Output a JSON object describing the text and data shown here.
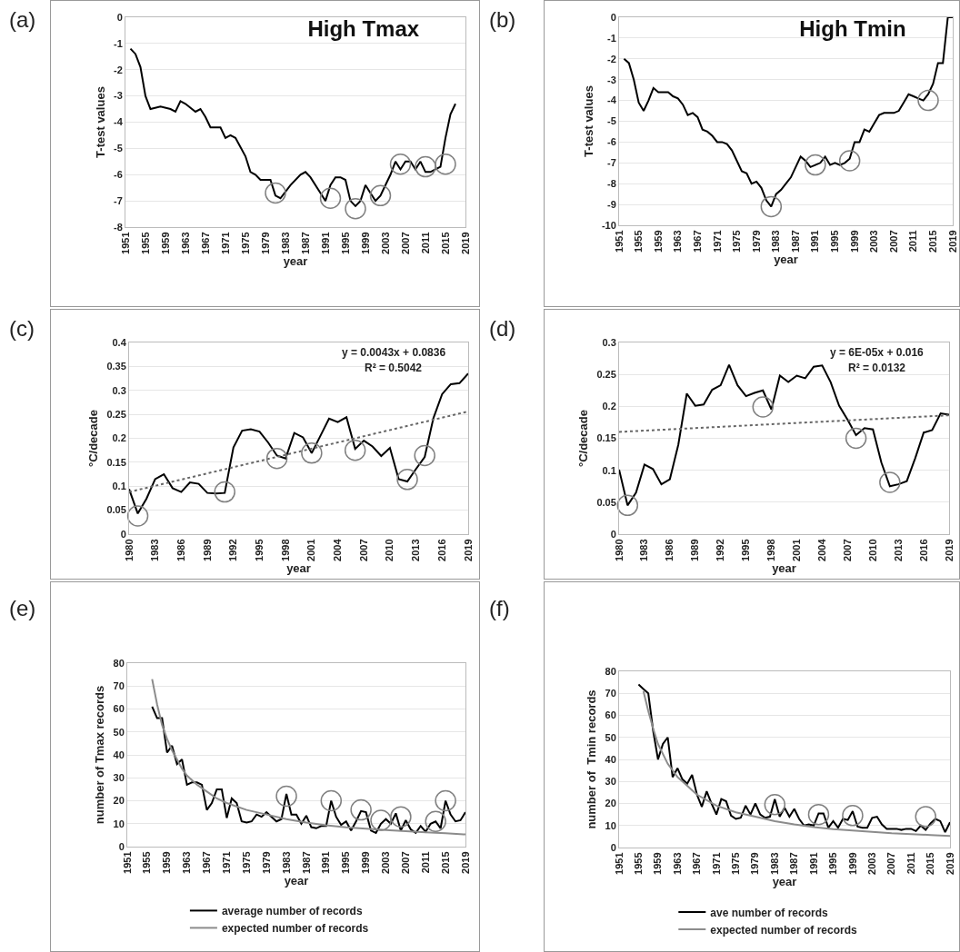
{
  "chart_data": [
    {
      "type": "line",
      "title": "High Tmax",
      "xlabel": "year",
      "ylabel": "T-test values",
      "annotations": [
        "(a)"
      ],
      "xlim": [
        1951,
        2019
      ],
      "xticks": [
        1951,
        1955,
        1959,
        1963,
        1967,
        1971,
        1975,
        1979,
        1983,
        1987,
        1991,
        1995,
        1999,
        2003,
        2007,
        2011,
        2015,
        2019
      ],
      "ylim": [
        -8,
        0
      ],
      "yticks": [
        -8,
        -7,
        -6,
        -5,
        -4,
        -3,
        -2,
        -1,
        0
      ],
      "grid": "y",
      "legend": false,
      "series": [
        {
          "color": "#000000",
          "x": [
            1952,
            1953,
            1954,
            1955,
            1956,
            1958,
            1960,
            1961,
            1962,
            1963,
            1965,
            1966,
            1967,
            1968,
            1970,
            1971,
            1972,
            1973,
            1975,
            1976,
            1977,
            1978,
            1979,
            1980,
            1981,
            1982,
            1984,
            1986,
            1987,
            1988,
            1990,
            1991,
            1992,
            1993,
            1994,
            1995,
            1996,
            1997,
            1998,
            1999,
            2000,
            2001,
            2002,
            2003,
            2004,
            2005,
            2006,
            2007,
            2008,
            2009,
            2010,
            2011,
            2012,
            2013,
            2014,
            2015,
            2016,
            2017
          ],
          "values": [
            -1.2,
            -1.4,
            -1.9,
            -3.0,
            -3.5,
            -3.4,
            -3.5,
            -3.6,
            -3.2,
            -3.3,
            -3.6,
            -3.5,
            -3.8,
            -4.2,
            -4.2,
            -4.6,
            -4.5,
            -4.6,
            -5.3,
            -5.9,
            -6.0,
            -6.2,
            -6.2,
            -6.2,
            -6.8,
            -6.9,
            -6.4,
            -6.0,
            -5.9,
            -6.1,
            -6.7,
            -7.0,
            -6.4,
            -6.1,
            -6.1,
            -6.2,
            -7.0,
            -7.2,
            -7.0,
            -6.4,
            -6.7,
            -7.0,
            -6.8,
            -6.4,
            -6.0,
            -5.5,
            -5.8,
            -5.5,
            -5.5,
            -5.8,
            -5.5,
            -5.9,
            -5.9,
            -5.8,
            -5.7,
            -4.6,
            -3.7,
            -3.3
          ]
        },
        {
          "type": "scatter",
          "marker": "circle",
          "color": "#808080",
          "x": [
            1981,
            1992,
            1997,
            2002,
            2006,
            2011,
            2015
          ],
          "values": [
            -6.7,
            -6.9,
            -7.3,
            -6.8,
            -5.6,
            -5.7,
            -5.6
          ]
        }
      ]
    },
    {
      "type": "line",
      "title": "High Tmin",
      "xlabel": "year",
      "ylabel": "T-test values",
      "annotations": [
        "(b)"
      ],
      "xlim": [
        1951,
        2019
      ],
      "xticks": [
        1951,
        1955,
        1959,
        1963,
        1967,
        1971,
        1975,
        1979,
        1983,
        1987,
        1991,
        1995,
        1999,
        2003,
        2007,
        2011,
        2015,
        2019
      ],
      "ylim": [
        -10,
        0
      ],
      "yticks": [
        -10,
        -9,
        -8,
        -7,
        -6,
        -5,
        -4,
        -3,
        -2,
        -1,
        0
      ],
      "grid": "y",
      "legend": false,
      "series": [
        {
          "color": "#000000",
          "x": [
            1952,
            1953,
            1954,
            1955,
            1956,
            1957,
            1958,
            1959,
            1960,
            1961,
            1962,
            1963,
            1964,
            1965,
            1966,
            1967,
            1968,
            1969,
            1970,
            1971,
            1972,
            1973,
            1974,
            1975,
            1976,
            1977,
            1978,
            1979,
            1980,
            1981,
            1982,
            1983,
            1984,
            1985,
            1986,
            1987,
            1988,
            1989,
            1990,
            1991,
            1992,
            1993,
            1994,
            1995,
            1996,
            1997,
            1998,
            1999,
            2000,
            2001,
            2002,
            2003,
            2004,
            2005,
            2006,
            2007,
            2008,
            2009,
            2010,
            2011,
            2012,
            2013,
            2014,
            2015,
            2016,
            2017,
            2018,
            2019
          ],
          "values": [
            -2.0,
            -2.2,
            -3.0,
            -4.1,
            -4.5,
            -4.0,
            -3.4,
            -3.6,
            -3.6,
            -3.6,
            -3.8,
            -3.9,
            -4.2,
            -4.7,
            -4.6,
            -4.8,
            -5.4,
            -5.5,
            -5.7,
            -6.0,
            -6.0,
            -6.1,
            -6.4,
            -6.9,
            -7.4,
            -7.5,
            -8.0,
            -7.9,
            -8.2,
            -8.8,
            -9.1,
            -8.5,
            -8.3,
            -8.0,
            -7.7,
            -7.2,
            -6.7,
            -6.9,
            -7.2,
            -7.1,
            -7.0,
            -6.7,
            -7.1,
            -7.0,
            -7.1,
            -7.0,
            -6.8,
            -6.0,
            -6.0,
            -5.4,
            -5.5,
            -5.1,
            -4.7,
            -4.6,
            -4.6,
            -4.6,
            -4.5,
            -4.1,
            -3.7,
            -3.8,
            -3.9,
            -4.0,
            -3.7,
            -3.2,
            -2.2,
            -2.2,
            0,
            0
          ]
        },
        {
          "type": "scatter",
          "marker": "circle",
          "color": "#808080",
          "x": [
            1982,
            1991,
            1998,
            2014
          ],
          "values": [
            -9.1,
            -7.1,
            -6.9,
            -4.0
          ]
        }
      ]
    },
    {
      "type": "line",
      "xlabel": "year",
      "ylabel": "°C/decade",
      "annotations": [
        "(c)",
        "y = 0.0043x + 0.0836",
        "R² = 0.5042"
      ],
      "xlim": [
        1980,
        2019
      ],
      "xticks": [
        1980,
        1983,
        1986,
        1989,
        1992,
        1995,
        1998,
        2001,
        2004,
        2007,
        2010,
        2013,
        2016,
        2019
      ],
      "ylim": [
        0,
        0.4
      ],
      "yticks": [
        0,
        0.05,
        0.1,
        0.15,
        0.2,
        0.25,
        0.3,
        0.35,
        0.4
      ],
      "grid": "y",
      "legend": false,
      "series": [
        {
          "color": "#000000",
          "x": [
            1980,
            1981,
            1982,
            1983,
            1984,
            1985,
            1986,
            1987,
            1988,
            1989,
            1990,
            1991,
            1992,
            1993,
            1994,
            1995,
            1996,
            1997,
            1998,
            1999,
            2000,
            2001,
            2002,
            2003,
            2004,
            2005,
            2006,
            2007,
            2008,
            2009,
            2010,
            2011,
            2012,
            2013,
            2014,
            2015,
            2016,
            2017,
            2018,
            2019
          ],
          "values": [
            0.094,
            0.043,
            0.074,
            0.115,
            0.125,
            0.096,
            0.088,
            0.108,
            0.105,
            0.086,
            0.085,
            0.086,
            0.181,
            0.216,
            0.219,
            0.214,
            0.191,
            0.164,
            0.158,
            0.211,
            0.202,
            0.169,
            0.205,
            0.241,
            0.234,
            0.244,
            0.178,
            0.195,
            0.183,
            0.163,
            0.18,
            0.115,
            0.11,
            0.136,
            0.161,
            0.242,
            0.292,
            0.313,
            0.315,
            0.335
          ]
        },
        {
          "type": "line",
          "line_style": "dotted",
          "color": "#666666",
          "x": [
            1980,
            2019
          ],
          "values": [
            0.088,
            0.256
          ]
        },
        {
          "type": "scatter",
          "marker": "circle",
          "color": "#808080",
          "x": [
            1981,
            1991,
            1997,
            2001,
            2006,
            2012,
            2014
          ],
          "values": [
            0.038,
            0.088,
            0.158,
            0.169,
            0.175,
            0.114,
            0.164
          ]
        }
      ]
    },
    {
      "type": "line",
      "xlabel": "year",
      "ylabel": "°C/decade",
      "annotations": [
        "(d)",
        "y = 6E-05x + 0.016",
        "R² = 0.0132"
      ],
      "xlim": [
        1980,
        2019
      ],
      "xticks": [
        1980,
        1983,
        1986,
        1989,
        1992,
        1995,
        1998,
        2001,
        2004,
        2007,
        2010,
        2013,
        2016,
        2019
      ],
      "ylim": [
        0,
        0.3
      ],
      "yticks": [
        0,
        0.05,
        0.1,
        0.15,
        0.2,
        0.25,
        0.3
      ],
      "grid": "y",
      "legend": false,
      "series": [
        {
          "color": "#000000",
          "x": [
            1980,
            1981,
            1982,
            1983,
            1984,
            1985,
            1986,
            1987,
            1988,
            1989,
            1990,
            1991,
            1992,
            1993,
            1994,
            1995,
            1996,
            1997,
            1998,
            1999,
            2000,
            2001,
            2002,
            2003,
            2004,
            2005,
            2006,
            2007,
            2008,
            2009,
            2010,
            2011,
            2012,
            2013,
            2014,
            2015,
            2016,
            2017,
            2018,
            2019
          ],
          "values": [
            0.101,
            0.045,
            0.065,
            0.109,
            0.102,
            0.078,
            0.086,
            0.14,
            0.22,
            0.201,
            0.203,
            0.226,
            0.233,
            0.265,
            0.233,
            0.216,
            0.221,
            0.225,
            0.195,
            0.248,
            0.238,
            0.248,
            0.244,
            0.262,
            0.264,
            0.238,
            0.201,
            0.179,
            0.155,
            0.166,
            0.164,
            0.112,
            0.075,
            0.078,
            0.083,
            0.119,
            0.159,
            0.163,
            0.189,
            0.187
          ]
        },
        {
          "type": "line",
          "line_style": "dotted",
          "color": "#666666",
          "x": [
            1980,
            2019
          ],
          "values": [
            0.16,
            0.186
          ]
        },
        {
          "type": "scatter",
          "marker": "circle",
          "color": "#808080",
          "x": [
            1981,
            1997,
            2008,
            2012
          ],
          "values": [
            0.045,
            0.199,
            0.15,
            0.081
          ]
        }
      ]
    },
    {
      "type": "line",
      "xlabel": "year",
      "ylabel": "number of Tmax records",
      "annotations": [
        "(e)"
      ],
      "xlim": [
        1951,
        2019
      ],
      "xticks": [
        1951,
        1955,
        1959,
        1963,
        1967,
        1971,
        1975,
        1979,
        1983,
        1987,
        1991,
        1995,
        1999,
        2003,
        2007,
        2011,
        2015,
        2019
      ],
      "ylim": [
        0,
        80
      ],
      "yticks": [
        0,
        10,
        20,
        30,
        40,
        50,
        60,
        70,
        80
      ],
      "grid": "y",
      "legend": "bottom",
      "series": [
        {
          "name": "average number of records",
          "color": "#000000",
          "x": [
            1956,
            1957,
            1958,
            1959,
            1960,
            1961,
            1962,
            1963,
            1964,
            1965,
            1966,
            1967,
            1968,
            1969,
            1970,
            1971,
            1972,
            1973,
            1974,
            1975,
            1976,
            1977,
            1978,
            1979,
            1980,
            1981,
            1982,
            1983,
            1984,
            1985,
            1986,
            1987,
            1988,
            1989,
            1990,
            1991,
            1992,
            1993,
            1994,
            1995,
            1996,
            1997,
            1998,
            1999,
            2000,
            2001,
            2002,
            2003,
            2004,
            2005,
            2006,
            2007,
            2008,
            2009,
            2010,
            2011,
            2012,
            2013,
            2014,
            2015,
            2016,
            2017,
            2018,
            2019
          ],
          "values": [
            61,
            56,
            56,
            41,
            44,
            36,
            38,
            27,
            28,
            28,
            27,
            16,
            19,
            25,
            25,
            12.5,
            21,
            19,
            11,
            10.5,
            11,
            14,
            13,
            15,
            13,
            11,
            12,
            23,
            14,
            14,
            10,
            13.5,
            8.5,
            8,
            9,
            9,
            20,
            13,
            9.5,
            11,
            7,
            11,
            15.5,
            15,
            7,
            6,
            10,
            12,
            10,
            14.5,
            7,
            11.5,
            7.5,
            6,
            9,
            6.5,
            10,
            11,
            8,
            20,
            14,
            11,
            11.5,
            15
          ]
        },
        {
          "name": "expected number of records",
          "color": "#8c8c8c",
          "x": [
            1956,
            1957,
            1958,
            1959,
            1960,
            1961,
            1962,
            1963,
            1965,
            1967,
            1969,
            1971,
            1975,
            1979,
            1983,
            1987,
            1991,
            1995,
            1999,
            2003,
            2007,
            2011,
            2015,
            2019
          ],
          "values": [
            73,
            62,
            53,
            47,
            42,
            38,
            34,
            31,
            27,
            24,
            21,
            19,
            16,
            14,
            12,
            10.5,
            9.3,
            8.4,
            7.8,
            7.2,
            6.7,
            6.2,
            5.8,
            5.3
          ]
        },
        {
          "type": "scatter",
          "marker": "circle",
          "color": "#808080",
          "x": [
            1983,
            1992,
            1998,
            2002,
            2006,
            2013,
            2015
          ],
          "values": [
            22,
            20,
            16,
            11.5,
            13,
            11,
            20
          ]
        }
      ]
    },
    {
      "type": "line",
      "xlabel": "year",
      "ylabel": "number of  Tmin records",
      "annotations": [
        "(f)"
      ],
      "xlim": [
        1951,
        2019
      ],
      "xticks": [
        1951,
        1955,
        1959,
        1963,
        1967,
        1971,
        1975,
        1979,
        1983,
        1987,
        1991,
        1995,
        1999,
        2003,
        2007,
        2011,
        2015,
        2019
      ],
      "ylim": [
        0,
        80
      ],
      "yticks": [
        0,
        10,
        20,
        30,
        40,
        50,
        60,
        70,
        80
      ],
      "grid": "y",
      "legend": "bottom",
      "series": [
        {
          "name": "ave number of records",
          "color": "#000000",
          "x": [
            1955,
            1956,
            1957,
            1958,
            1959,
            1960,
            1961,
            1962,
            1963,
            1964,
            1965,
            1966,
            1967,
            1968,
            1969,
            1970,
            1971,
            1972,
            1973,
            1974,
            1975,
            1976,
            1977,
            1978,
            1979,
            1980,
            1981,
            1982,
            1983,
            1984,
            1985,
            1986,
            1987,
            1988,
            1989,
            1990,
            1991,
            1992,
            1993,
            1994,
            1995,
            1996,
            1997,
            1998,
            1999,
            2000,
            2001,
            2002,
            2003,
            2004,
            2005,
            2006,
            2007,
            2008,
            2009,
            2010,
            2011,
            2012,
            2013,
            2014,
            2015,
            2016,
            2017,
            2018,
            2019
          ],
          "values": [
            74,
            72,
            70,
            53,
            40,
            47,
            50,
            32,
            36,
            31,
            29,
            33,
            24,
            18.5,
            25.5,
            20,
            15,
            22,
            21,
            14.5,
            13,
            13.5,
            19,
            15,
            20,
            15,
            13.5,
            14,
            22,
            14,
            18,
            14,
            17.5,
            13,
            10,
            10.5,
            10,
            15.5,
            15.5,
            9,
            12,
            9,
            13,
            12.5,
            16.5,
            9.5,
            9,
            9,
            13.5,
            14,
            10.5,
            8.5,
            8.5,
            8.5,
            8,
            8.5,
            8.5,
            7.5,
            10,
            8,
            11,
            13,
            12,
            7,
            11.5
          ]
        },
        {
          "name": "expected number of records",
          "color": "#8c8c8c",
          "x": [
            1956,
            1957,
            1958,
            1959,
            1961,
            1963,
            1965,
            1967,
            1971,
            1975,
            1979,
            1983,
            1987,
            1991,
            1995,
            1999,
            2003,
            2007,
            2011,
            2015,
            2019
          ],
          "values": [
            71,
            62,
            54,
            47,
            38,
            32,
            28,
            24,
            19,
            16,
            14,
            12,
            10.5,
            9.3,
            8.4,
            7.7,
            7.1,
            6.5,
            6.1,
            5.7,
            5.3
          ]
        },
        {
          "type": "scatter",
          "marker": "circle",
          "color": "#808080",
          "x": [
            1983,
            1992,
            1999,
            2014
          ],
          "values": [
            19.5,
            15,
            14.5,
            14
          ]
        }
      ]
    }
  ]
}
